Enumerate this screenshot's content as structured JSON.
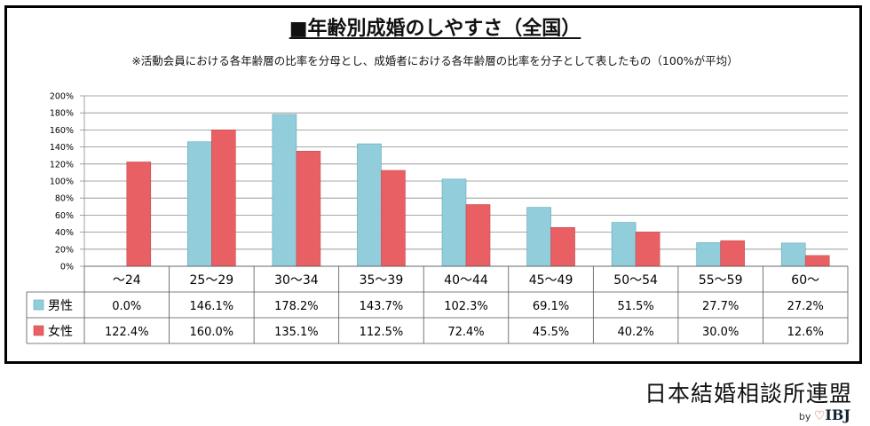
{
  "chart_data": {
    "type": "bar",
    "title": "■年齢別成婚のしやすさ（全国）",
    "subtitle": "※活動会員における各年齢層の比率を分母とし、成婚者における各年齢層の比率を分子として表したもの（100%が平均）",
    "categories": [
      "～24",
      "25～29",
      "30～34",
      "35～39",
      "40～44",
      "45～49",
      "50～54",
      "55～59",
      "60～"
    ],
    "series": [
      {
        "name": "男性",
        "color": "#92cddc",
        "values": [
          0.0,
          146.1,
          178.2,
          143.7,
          102.3,
          69.1,
          51.5,
          27.7,
          27.2
        ],
        "labels": [
          "0.0%",
          "146.1%",
          "178.2%",
          "143.7%",
          "102.3%",
          "69.1%",
          "51.5%",
          "27.7%",
          "27.2%"
        ]
      },
      {
        "name": "女性",
        "color": "#e96064",
        "values": [
          122.4,
          160.0,
          135.1,
          112.5,
          72.4,
          45.5,
          40.2,
          30.0,
          12.6
        ],
        "labels": [
          "122.4%",
          "160.0%",
          "135.1%",
          "112.5%",
          "72.4%",
          "45.5%",
          "40.2%",
          "30.0%",
          "12.6%"
        ]
      }
    ],
    "ylim": [
      0,
      200
    ],
    "yticks": [
      "0%",
      "20%",
      "40%",
      "60%",
      "80%",
      "100%",
      "120%",
      "140%",
      "160%",
      "180%",
      "200%"
    ],
    "grid": true,
    "legend": "data-table"
  },
  "footer": {
    "brand": "日本結婚相談所連盟",
    "by": "by",
    "logo": "IBJ",
    "logo_icon": "heart-icon"
  }
}
